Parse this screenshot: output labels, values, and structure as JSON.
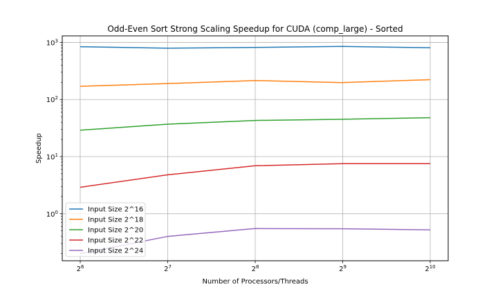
{
  "chart_data": {
    "type": "line",
    "title": "Odd-Even Sort Strong Scaling Speedup for CUDA (comp_large) - Sorted",
    "xlabel": "Number of Processors/Threads",
    "ylabel": "Speedup",
    "x": [
      64,
      128,
      256,
      512,
      1024
    ],
    "x_tick_labels": [
      {
        "base": "2",
        "exp": "6"
      },
      {
        "base": "2",
        "exp": "7"
      },
      {
        "base": "2",
        "exp": "8"
      },
      {
        "base": "2",
        "exp": "9"
      },
      {
        "base": "2",
        "exp": "10"
      }
    ],
    "x_scale": "log2",
    "y_scale": "log10",
    "ylim": [
      0.15,
      1300
    ],
    "y_tick_labels": [
      {
        "value": 1,
        "base": "10",
        "exp": "0"
      },
      {
        "value": 10,
        "base": "10",
        "exp": "1"
      },
      {
        "value": 100,
        "base": "10",
        "exp": "2"
      },
      {
        "value": 1000,
        "base": "10",
        "exp": "3"
      }
    ],
    "grid": true,
    "legend_position": "lower-left",
    "series": [
      {
        "name": "Input Size 2^16",
        "color": "#1f77b4",
        "values": [
          840,
          790,
          815,
          850,
          805
        ]
      },
      {
        "name": "Input Size 2^18",
        "color": "#ff7f0e",
        "values": [
          170,
          190,
          215,
          198,
          222
        ]
      },
      {
        "name": "Input Size 2^20",
        "color": "#2ca02c",
        "values": [
          29,
          37,
          43,
          45,
          48
        ]
      },
      {
        "name": "Input Size 2^22",
        "color": "#d62728",
        "values": [
          2.9,
          4.8,
          6.9,
          7.5,
          7.5
        ]
      },
      {
        "name": "Input Size 2^24",
        "color": "#9467bd",
        "values": [
          0.2,
          0.4,
          0.55,
          0.545,
          0.52
        ]
      }
    ]
  }
}
